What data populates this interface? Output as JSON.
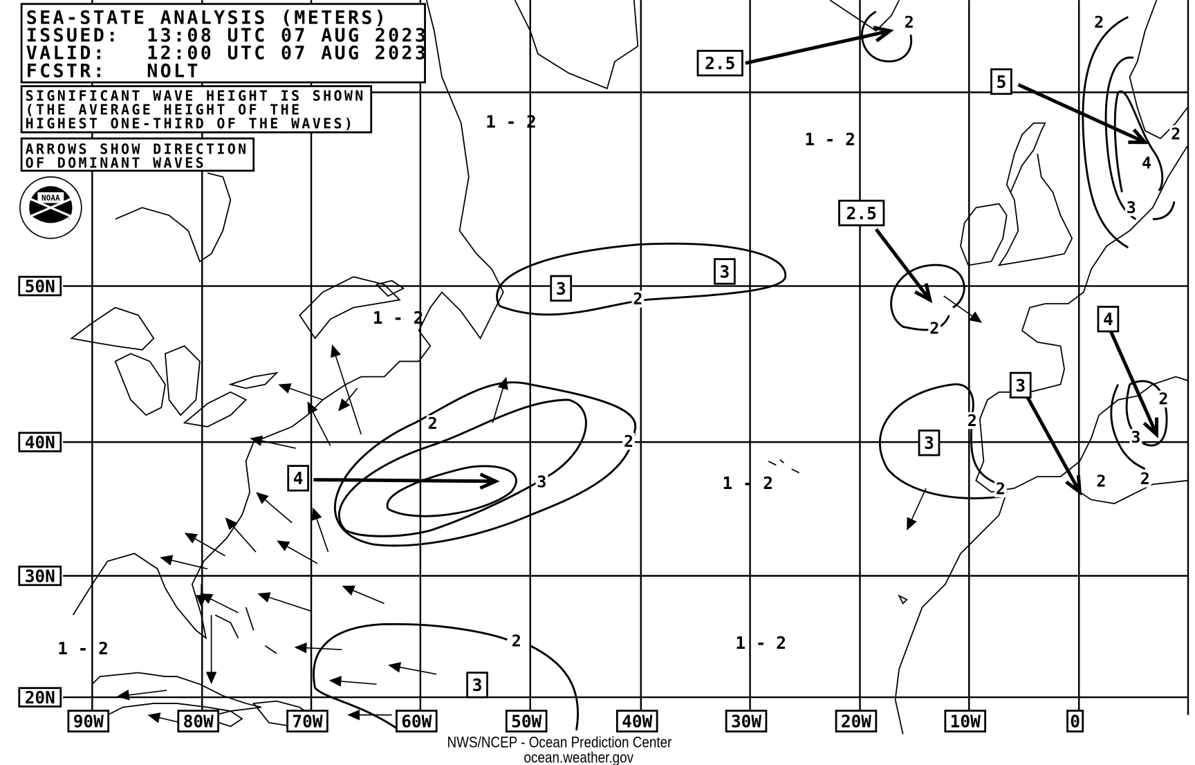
{
  "header": {
    "title": "SEA-STATE ANALYSIS (METERS)",
    "issued": "ISSUED:  13:08 UTC 07 AUG 2023",
    "valid": "VALID:   12:00 UTC 07 AUG 2023",
    "forecaster": "FCSTR:   NOLT"
  },
  "notes": {
    "wave_height": [
      "SIGNIFICANT WAVE HEIGHT IS SHOWN",
      "(THE AVERAGE HEIGHT OF THE",
      "HIGHEST ONE-THIRD OF THE WAVES)"
    ],
    "arrows": [
      "ARROWS SHOW DIRECTION",
      "OF DOMINANT WAVES"
    ]
  },
  "logo": {
    "text": "NOAA",
    "icon": "noaa-logo"
  },
  "axes": {
    "latitude_labels": [
      "50N",
      "40N",
      "30N",
      "20N"
    ],
    "longitude_labels": [
      "90W",
      "80W",
      "70W",
      "60W",
      "50W",
      "40W",
      "30W",
      "20W",
      "10W",
      "0"
    ]
  },
  "range_labels": [
    "1 - 2",
    "1 - 2",
    "1 - 2",
    "1 - 2",
    "1 - 2",
    "1 - 2"
  ],
  "contour_labels": [
    "2",
    "2",
    "2",
    "2",
    "2",
    "2",
    "2",
    "2",
    "2",
    "2",
    "2",
    "2",
    "2",
    "3",
    "3",
    "4",
    "3"
  ],
  "max_height_boxes": [
    "2.5",
    "5",
    "2.5",
    "3",
    "3",
    "4",
    "3",
    "3",
    "4",
    "3"
  ],
  "footer": {
    "agency": "NWS/NCEP - Ocean Prediction Center",
    "website": "ocean.weather.gov"
  },
  "colors": {
    "ink": "#000000",
    "background": "#ffffff"
  }
}
